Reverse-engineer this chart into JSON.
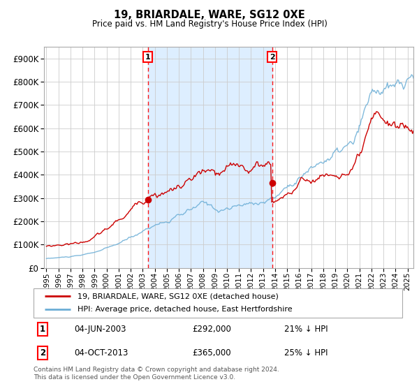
{
  "title": "19, BRIARDALE, WARE, SG12 0XE",
  "subtitle": "Price paid vs. HM Land Registry's House Price Index (HPI)",
  "legend_line1": "19, BRIARDALE, WARE, SG12 0XE (detached house)",
  "legend_line2": "HPI: Average price, detached house, East Hertfordshire",
  "annotation1_date": "04-JUN-2003",
  "annotation1_price": "£292,000",
  "annotation1_pct": "21% ↓ HPI",
  "annotation1_year": 2003.42,
  "annotation1_price_val": 292000,
  "annotation2_date": "04-OCT-2013",
  "annotation2_price": "£365,000",
  "annotation2_pct": "25% ↓ HPI",
  "annotation2_year": 2013.75,
  "annotation2_price_val": 365000,
  "footer": "Contains HM Land Registry data © Crown copyright and database right 2024.\nThis data is licensed under the Open Government Licence v3.0.",
  "hpi_color": "#6baed6",
  "price_color": "#cc0000",
  "background_color": "#ffffff",
  "plot_bg_color": "#ffffff",
  "shaded_region_color": "#ddeeff",
  "grid_color": "#cccccc",
  "ylim": [
    0,
    950000
  ],
  "xlim_start": 1994.8,
  "xlim_end": 2025.5,
  "yticks": [
    0,
    100000,
    200000,
    300000,
    400000,
    500000,
    600000,
    700000,
    800000,
    900000
  ],
  "xticks": [
    1995,
    1996,
    1997,
    1998,
    1999,
    2000,
    2001,
    2002,
    2003,
    2004,
    2005,
    2006,
    2007,
    2008,
    2009,
    2010,
    2011,
    2012,
    2013,
    2014,
    2015,
    2016,
    2017,
    2018,
    2019,
    2020,
    2021,
    2022,
    2023,
    2024,
    2025
  ]
}
